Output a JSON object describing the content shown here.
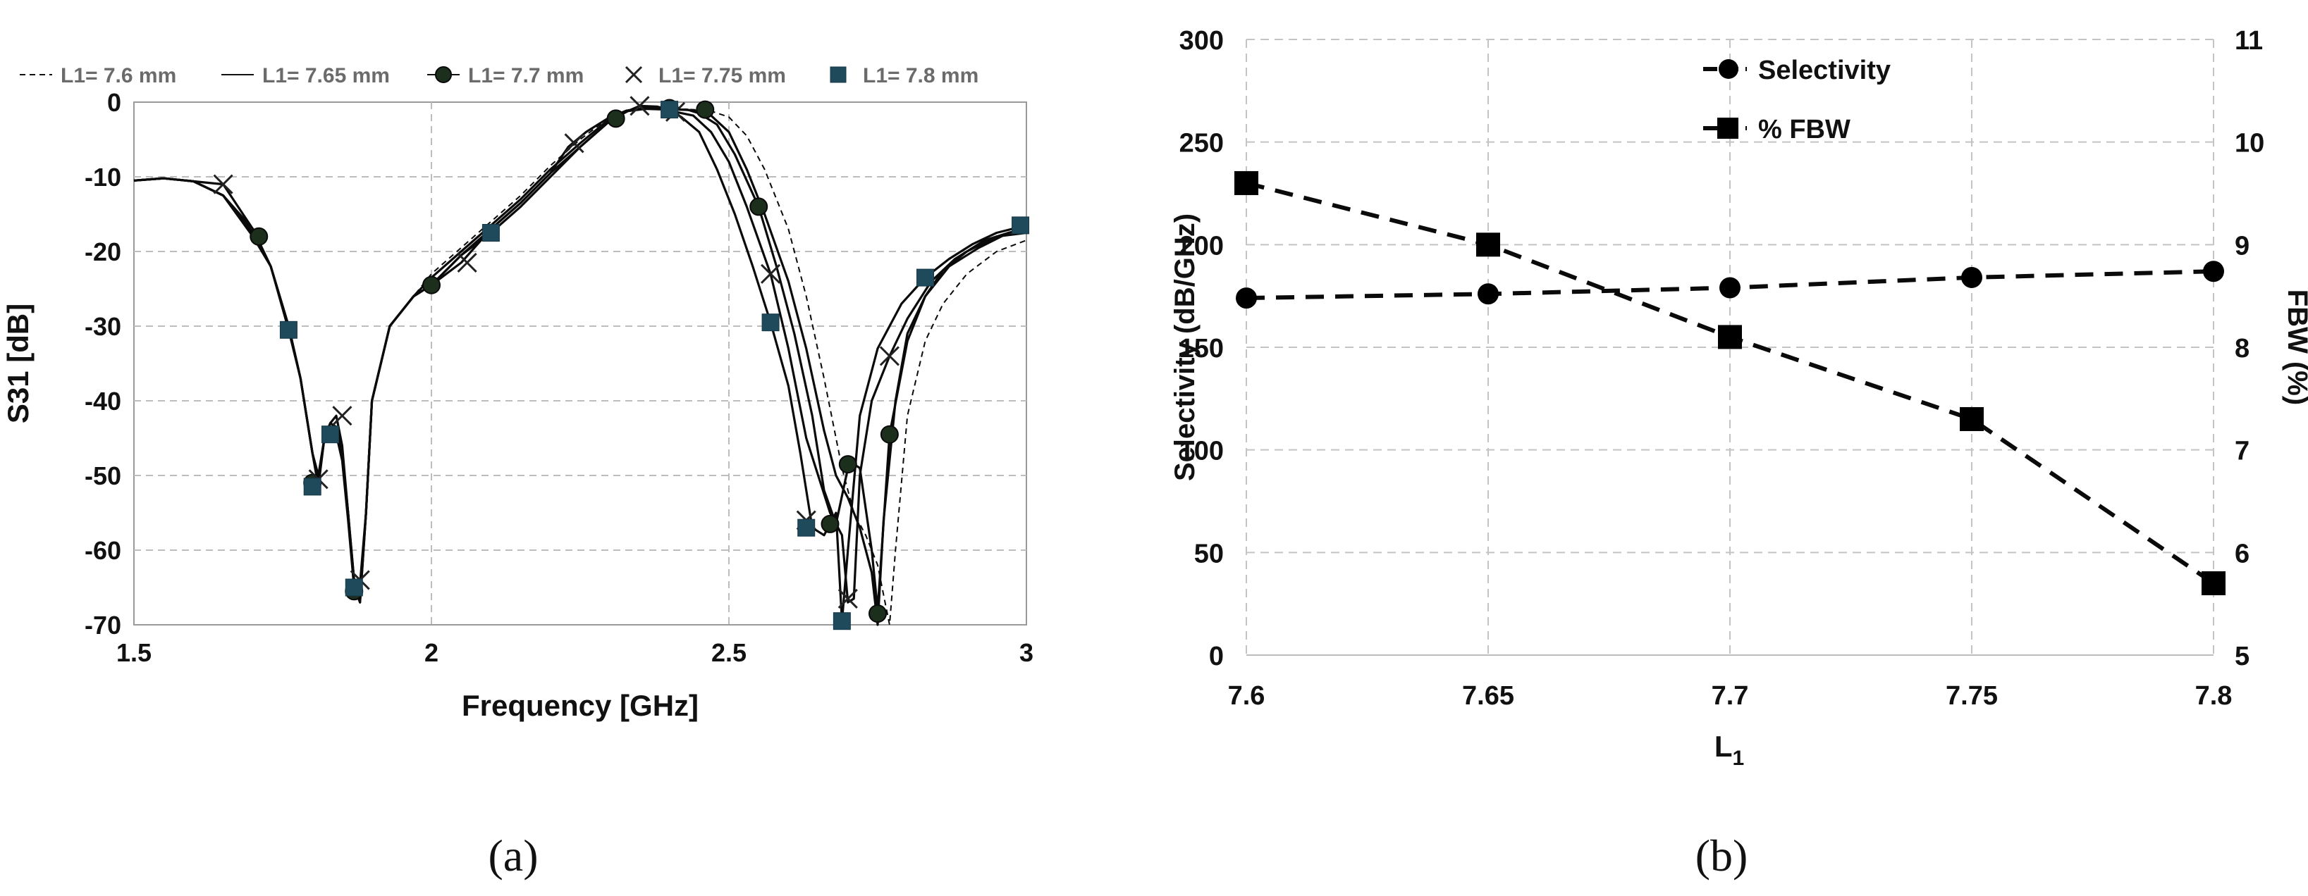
{
  "chart_data": [
    {
      "id": "a",
      "type": "line",
      "panel_label": "(a)",
      "title": "",
      "xlabel": "Frequency [GHz]",
      "ylabel": "S31 [dB]",
      "xlim": [
        1.5,
        3
      ],
      "ylim": [
        -70,
        0
      ],
      "xticks": [
        1.5,
        2,
        2.5,
        3
      ],
      "xtick_labels": [
        "1.5",
        "2",
        "2.5",
        "3"
      ],
      "yticks": [
        0,
        -10,
        -20,
        -30,
        -40,
        -50,
        -60,
        -70
      ],
      "ytick_labels": [
        "0",
        "-10",
        "-20",
        "-30",
        "-40",
        "-50",
        "-60",
        "-70"
      ],
      "grid": true,
      "legend_position": "top",
      "series": [
        {
          "name": "L1= 7.6 mm",
          "style": "dashed",
          "marker": "none",
          "x": [
            1.5,
            1.55,
            1.6,
            1.65,
            1.7,
            1.73,
            1.76,
            1.78,
            1.8,
            1.81,
            1.82,
            1.83,
            1.84,
            1.85,
            1.86,
            1.87,
            1.88,
            1.89,
            1.9,
            1.93,
            1.97,
            2.0,
            2.05,
            2.1,
            2.15,
            2.2,
            2.25,
            2.3,
            2.33,
            2.36,
            2.4,
            2.44,
            2.47,
            2.5,
            2.53,
            2.56,
            2.6,
            2.63,
            2.66,
            2.69,
            2.71,
            2.73,
            2.75,
            2.76,
            2.77,
            2.78,
            2.8,
            2.83,
            2.86,
            2.9,
            2.95,
            3.0
          ],
          "y": [
            -10.5,
            -10.2,
            -10.6,
            -12.5,
            -17,
            -22,
            -30,
            -37,
            -47,
            -51,
            -45,
            -43,
            -43.5,
            -47,
            -55,
            -64,
            -67,
            -55,
            -40,
            -30,
            -26,
            -23,
            -19.5,
            -16,
            -12.5,
            -8.5,
            -5,
            -2,
            -1,
            -0.7,
            -0.9,
            -1,
            -1.2,
            -2,
            -4.5,
            -9,
            -17,
            -26,
            -37,
            -49,
            -55,
            -58,
            -62,
            -66,
            -70,
            -60,
            -42,
            -32,
            -27,
            -23,
            -20,
            -18.5
          ]
        },
        {
          "name": "L1= 7.65 mm",
          "style": "solid",
          "marker": "none",
          "x": [
            1.5,
            1.55,
            1.6,
            1.65,
            1.7,
            1.73,
            1.76,
            1.78,
            1.8,
            1.81,
            1.82,
            1.83,
            1.84,
            1.85,
            1.86,
            1.87,
            1.88,
            1.89,
            1.9,
            1.93,
            1.97,
            2.0,
            2.05,
            2.1,
            2.15,
            2.2,
            2.25,
            2.3,
            2.33,
            2.36,
            2.4,
            2.44,
            2.47,
            2.5,
            2.53,
            2.56,
            2.6,
            2.63,
            2.66,
            2.68,
            2.7,
            2.72,
            2.74,
            2.75,
            2.76,
            2.78,
            2.8,
            2.83,
            2.86,
            2.9,
            2.95,
            3.0
          ],
          "y": [
            -10.5,
            -10.2,
            -10.6,
            -12.5,
            -17.5,
            -22,
            -30,
            -37,
            -47,
            -51,
            -45,
            -43,
            -43.5,
            -47,
            -55,
            -64,
            -67,
            -55,
            -40,
            -30,
            -26,
            -23.5,
            -20,
            -16.5,
            -13,
            -9,
            -5.5,
            -2.2,
            -1.1,
            -0.8,
            -0.9,
            -1.1,
            -1.8,
            -4,
            -9,
            -15,
            -24,
            -33,
            -44,
            -50,
            -53,
            -57,
            -63,
            -70,
            -56,
            -40,
            -31,
            -26,
            -22.5,
            -20,
            -18,
            -17.5
          ]
        },
        {
          "name": "L1= 7.7 mm",
          "style": "solid",
          "marker": "circle",
          "x": [
            1.5,
            1.55,
            1.6,
            1.65,
            1.7,
            1.73,
            1.76,
            1.78,
            1.8,
            1.81,
            1.82,
            1.83,
            1.84,
            1.85,
            1.86,
            1.87,
            1.88,
            1.89,
            1.9,
            1.93,
            1.97,
            2.0,
            2.05,
            2.1,
            2.15,
            2.2,
            2.25,
            2.3,
            2.33,
            2.36,
            2.4,
            2.43,
            2.45,
            2.48,
            2.51,
            2.55,
            2.58,
            2.61,
            2.64,
            2.66,
            2.68,
            2.7,
            2.71,
            2.72,
            2.74,
            2.75,
            2.77,
            2.8,
            2.83,
            2.87,
            2.92,
            2.97,
            3.0
          ],
          "y": [
            -10.5,
            -10.2,
            -10.6,
            -12.5,
            -18,
            -22,
            -30,
            -37,
            -47,
            -51,
            -45,
            -43,
            -43.5,
            -47,
            -55,
            -65,
            -67,
            -55,
            -40,
            -30,
            -26,
            -24.5,
            -20.5,
            -17,
            -13.5,
            -9.5,
            -6,
            -2.5,
            -1.2,
            -0.8,
            -1,
            -1,
            -1.5,
            -3,
            -7,
            -14,
            -22,
            -31,
            -42,
            -52,
            -56.5,
            -49,
            -48.5,
            -49,
            -60,
            -68,
            -44.5,
            -32,
            -26,
            -22,
            -19.5,
            -17.5,
            -17
          ]
        },
        {
          "name": "L1= 7.75 mm",
          "style": "solid",
          "marker": "x",
          "x": [
            1.5,
            1.55,
            1.6,
            1.65,
            1.7,
            1.73,
            1.76,
            1.78,
            1.8,
            1.81,
            1.82,
            1.83,
            1.84,
            1.85,
            1.86,
            1.87,
            1.88,
            1.89,
            1.9,
            1.93,
            1.97,
            2.0,
            2.05,
            2.1,
            2.15,
            2.2,
            2.23,
            2.26,
            2.3,
            2.33,
            2.35,
            2.38,
            2.41,
            2.44,
            2.47,
            2.5,
            2.53,
            2.57,
            2.6,
            2.63,
            2.65,
            2.67,
            2.69,
            2.7,
            2.71,
            2.72,
            2.74,
            2.77,
            2.8,
            2.84,
            2.88,
            2.93,
            2.97,
            3.0
          ],
          "y": [
            -10.5,
            -10.2,
            -10.6,
            -11,
            -17,
            -22,
            -30,
            -37,
            -47,
            -50,
            -45,
            -43,
            -42,
            -46,
            -55,
            -64,
            -64.5,
            -55,
            -40,
            -30,
            -26,
            -24.5,
            -21.5,
            -17,
            -13.5,
            -9.5,
            -6,
            -4,
            -2,
            -1.2,
            -0.5,
            -0.6,
            -1.3,
            -1.8,
            -4,
            -8,
            -14,
            -23,
            -33,
            -45,
            -50,
            -55,
            -58,
            -67,
            -66.5,
            -50,
            -40,
            -34,
            -29,
            -24,
            -21,
            -18.5,
            -17.5,
            -17
          ]
        },
        {
          "name": "L1= 7.8 mm",
          "style": "solid",
          "marker": "square",
          "x": [
            1.5,
            1.55,
            1.6,
            1.65,
            1.7,
            1.73,
            1.76,
            1.78,
            1.8,
            1.81,
            1.82,
            1.83,
            1.84,
            1.85,
            1.86,
            1.87,
            1.88,
            1.89,
            1.9,
            1.93,
            1.97,
            2.0,
            2.05,
            2.1,
            2.15,
            2.2,
            2.25,
            2.3,
            2.33,
            2.36,
            2.4,
            2.42,
            2.45,
            2.48,
            2.51,
            2.54,
            2.57,
            2.6,
            2.62,
            2.64,
            2.66,
            2.68,
            2.69,
            2.7,
            2.72,
            2.75,
            2.79,
            2.83,
            2.87,
            2.91,
            2.95,
            3.0
          ],
          "y": [
            -10.5,
            -10.2,
            -10.6,
            -12.5,
            -17,
            -22,
            -30.5,
            -37,
            -47,
            -51.5,
            -45,
            -44,
            -44.5,
            -48,
            -56,
            -65,
            -66,
            -55,
            -40,
            -30,
            -26,
            -24.5,
            -20.5,
            -17.5,
            -14,
            -10,
            -6,
            -2.5,
            -1.2,
            -0.9,
            -1,
            -2,
            -4,
            -9,
            -15,
            -22,
            -29.5,
            -38,
            -47,
            -57,
            -58,
            -55,
            -69.5,
            -60,
            -42,
            -33,
            -27,
            -23.5,
            -21,
            -19,
            -17.5,
            -16.5
          ]
        }
      ],
      "markers": {
        "L1= 7.7 mm": [
          [
            1.71,
            -18
          ],
          [
            1.8,
            -51
          ],
          [
            1.87,
            -65.5
          ],
          [
            2.0,
            -24.5
          ],
          [
            2.31,
            -2.2
          ],
          [
            2.4,
            -0.8
          ],
          [
            2.46,
            -1
          ],
          [
            2.55,
            -14
          ],
          [
            2.67,
            -56.5
          ],
          [
            2.7,
            -48.5
          ],
          [
            2.75,
            -68.5
          ],
          [
            2.77,
            -44.5
          ]
        ],
        "L1= 7.75 mm": [
          [
            1.65,
            -11
          ],
          [
            1.81,
            -50.5
          ],
          [
            1.85,
            -42
          ],
          [
            1.88,
            -64
          ],
          [
            2.06,
            -21.5
          ],
          [
            2.24,
            -5.5
          ],
          [
            2.35,
            -0.5
          ],
          [
            2.41,
            -1.3
          ],
          [
            2.57,
            -23
          ],
          [
            2.63,
            -56
          ],
          [
            2.7,
            -66.5
          ],
          [
            2.77,
            -34
          ]
        ],
        "L1= 7.8 mm": [
          [
            1.76,
            -30.5
          ],
          [
            1.8,
            -51.5
          ],
          [
            1.83,
            -44.5
          ],
          [
            1.87,
            -65
          ],
          [
            2.1,
            -17.5
          ],
          [
            2.4,
            -1
          ],
          [
            2.57,
            -29.5
          ],
          [
            2.63,
            -57
          ],
          [
            2.69,
            -69.5
          ],
          [
            2.83,
            -23.5
          ],
          [
            2.99,
            -16.5
          ]
        ]
      }
    },
    {
      "id": "b",
      "type": "line",
      "panel_label": "(b)",
      "title": "",
      "xlabel": "L1",
      "xlabel_main": "L",
      "xlabel_sub": "1",
      "ylabel": "Selectivity (dB/GHz)",
      "y2label": "FBW (%)",
      "categories": [
        "7.6",
        "7.65",
        "7.7",
        "7.75",
        "7.8"
      ],
      "ylim": [
        0,
        300
      ],
      "yticks": [
        0,
        50,
        100,
        150,
        200,
        250,
        300
      ],
      "ytick_labels": [
        "0",
        "50",
        "100",
        "150",
        "200",
        "250",
        "300"
      ],
      "y2lim": [
        5,
        11
      ],
      "y2ticks": [
        5,
        6,
        7,
        8,
        9,
        10,
        11
      ],
      "y2tick_labels": [
        "5",
        "6",
        "7",
        "8",
        "9",
        "10",
        "11"
      ],
      "grid": true,
      "legend_position": "top-right",
      "series": [
        {
          "name": "Selectivity",
          "axis": "left",
          "marker": "circle",
          "style": "dashed",
          "values": [
            174,
            176,
            179,
            184,
            187
          ]
        },
        {
          "name": "% FBW",
          "axis": "right",
          "marker": "square",
          "style": "dashed",
          "values": [
            9.6,
            9.0,
            8.1,
            7.3,
            5.7
          ]
        }
      ]
    }
  ]
}
